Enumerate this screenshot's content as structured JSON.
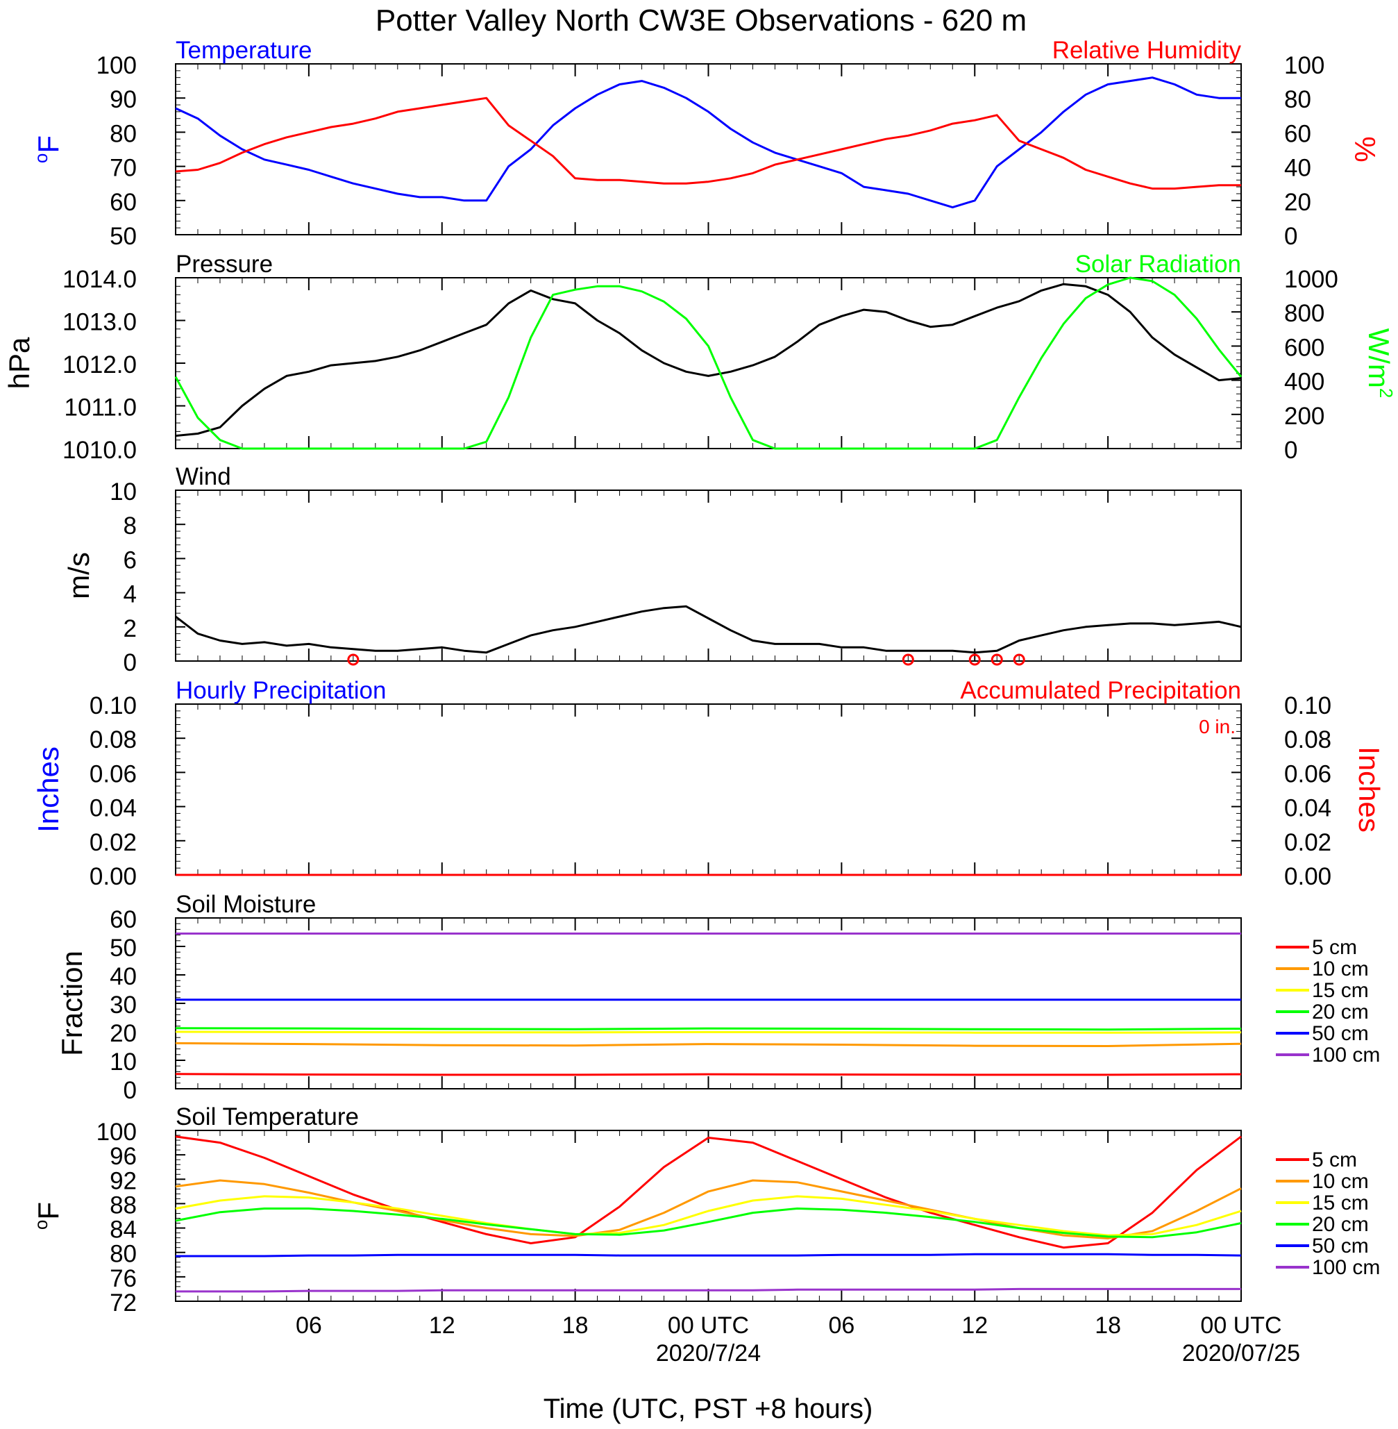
{
  "figure": {
    "title": "Potter Valley North CW3E Observations - 620 m",
    "xlabel": "Time (UTC, PST +8 hours)"
  },
  "colors": {
    "temperature": "#0000ff",
    "humidity": "#ff0000",
    "pressure": "#000000",
    "solar": "#00ff00",
    "wind": "#000000",
    "wind_barb": "#ff0000",
    "hourly_precip": "#0000ff",
    "accum_precip": "#ff0000",
    "soil_5": "#ff0000",
    "soil_10": "#ff9900",
    "soil_15": "#ffff00",
    "soil_20": "#00ff00",
    "soil_50": "#0000ff",
    "soil_100": "#9933cc"
  },
  "x_axis": {
    "tick_labels": [
      "06",
      "12",
      "18",
      "00 UTC",
      "06",
      "12",
      "18",
      "00 UTC"
    ],
    "date_labels": [
      "2020/7/24",
      "2020/07/25"
    ],
    "range_hours": [
      1,
      49
    ]
  },
  "chart_data": [
    {
      "type": "line",
      "panel": "temperature-humidity",
      "title_left": "Temperature",
      "title_right": "Relative Humidity",
      "ylabel_left": "oF",
      "ylabel_right": "%",
      "ylim_left": [
        50,
        100
      ],
      "ylim_right": [
        0,
        100
      ],
      "yticks_left": [
        "50",
        "60",
        "70",
        "80",
        "90",
        "100"
      ],
      "yticks_right": [
        "0",
        "20",
        "40",
        "60",
        "80",
        "100"
      ],
      "x_hours": [
        1,
        2,
        3,
        4,
        5,
        6,
        7,
        8,
        9,
        10,
        11,
        12,
        13,
        14,
        15,
        16,
        17,
        18,
        19,
        20,
        21,
        22,
        23,
        24,
        25,
        26,
        27,
        28,
        29,
        30,
        31,
        32,
        33,
        34,
        35,
        36,
        37,
        38,
        39,
        40,
        41,
        42,
        43,
        44,
        45,
        46,
        47,
        48,
        49
      ],
      "series": [
        {
          "name": "Temperature",
          "axis": "left",
          "color_key": "temperature",
          "values": [
            87,
            84,
            79,
            75,
            72,
            70.5,
            69,
            67,
            65,
            63.5,
            62,
            61,
            61,
            60,
            60,
            70,
            75,
            82,
            87,
            91,
            94,
            95,
            93,
            90,
            86,
            81,
            77,
            74,
            72,
            70,
            68,
            64,
            63,
            62,
            60,
            58,
            60,
            70,
            75,
            80,
            86,
            91,
            94,
            95,
            96,
            94,
            91,
            90,
            90
          ]
        },
        {
          "name": "Relative Humidity",
          "axis": "right",
          "color_key": "humidity",
          "values": [
            37,
            38,
            42,
            48,
            53,
            57,
            60,
            63,
            65,
            68,
            72,
            74,
            76,
            78,
            80,
            64,
            55,
            46,
            33,
            32,
            32,
            31,
            30,
            30,
            31,
            33,
            36,
            41,
            44,
            47,
            50,
            53,
            56,
            58,
            61,
            65,
            67,
            70,
            55,
            50,
            45,
            38,
            34,
            30,
            27,
            27,
            28,
            29,
            29
          ]
        }
      ]
    },
    {
      "type": "line",
      "panel": "pressure-solar",
      "title_left": "Pressure",
      "title_right": "Solar Radiation",
      "ylabel_left": "hPa",
      "ylabel_right": "W/m2",
      "ylim_left": [
        1010,
        1014
      ],
      "ylim_right": [
        0,
        1000
      ],
      "yticks_left": [
        "1010.0",
        "1011.0",
        "1012.0",
        "1013.0",
        "1014.0"
      ],
      "yticks_right": [
        "0",
        "200",
        "400",
        "600",
        "800",
        "1000"
      ],
      "x_hours": [
        1,
        2,
        3,
        4,
        5,
        6,
        7,
        8,
        9,
        10,
        11,
        12,
        13,
        14,
        15,
        16,
        17,
        18,
        19,
        20,
        21,
        22,
        23,
        24,
        25,
        26,
        27,
        28,
        29,
        30,
        31,
        32,
        33,
        34,
        35,
        36,
        37,
        38,
        39,
        40,
        41,
        42,
        43,
        44,
        45,
        46,
        47,
        48,
        49
      ],
      "series": [
        {
          "name": "Pressure",
          "axis": "left",
          "color_key": "pressure",
          "values": [
            1010.3,
            1010.35,
            1010.5,
            1011.0,
            1011.4,
            1011.7,
            1011.8,
            1011.95,
            1012.0,
            1012.05,
            1012.15,
            1012.3,
            1012.5,
            1012.7,
            1012.9,
            1013.4,
            1013.7,
            1013.5,
            1013.4,
            1013.0,
            1012.7,
            1012.3,
            1012.0,
            1011.8,
            1011.7,
            1011.8,
            1011.95,
            1012.15,
            1012.5,
            1012.9,
            1013.1,
            1013.25,
            1013.2,
            1013.0,
            1012.85,
            1012.9,
            1013.1,
            1013.3,
            1013.45,
            1013.7,
            1013.85,
            1013.8,
            1013.6,
            1013.2,
            1012.6,
            1012.2,
            1011.9,
            1011.6,
            1011.65
          ]
        },
        {
          "name": "Solar Radiation",
          "axis": "right",
          "color_key": "solar",
          "values": [
            420,
            180,
            50,
            0,
            0,
            0,
            0,
            0,
            0,
            0,
            0,
            0,
            0,
            0,
            40,
            300,
            650,
            900,
            930,
            950,
            950,
            920,
            860,
            760,
            600,
            300,
            50,
            0,
            0,
            0,
            0,
            0,
            0,
            0,
            0,
            0,
            0,
            50,
            300,
            530,
            730,
            880,
            960,
            1000,
            980,
            900,
            760,
            580,
            420
          ]
        }
      ]
    },
    {
      "type": "line",
      "panel": "wind",
      "title_left": "Wind",
      "ylabel_left": "m/s",
      "ylim_left": [
        0,
        10
      ],
      "yticks_left": [
        "0",
        "2",
        "4",
        "6",
        "8",
        "10"
      ],
      "x_hours": [
        1,
        2,
        3,
        4,
        5,
        6,
        7,
        8,
        9,
        10,
        11,
        12,
        13,
        14,
        15,
        16,
        17,
        18,
        19,
        20,
        21,
        22,
        23,
        24,
        25,
        26,
        27,
        28,
        29,
        30,
        31,
        32,
        33,
        34,
        35,
        36,
        37,
        38,
        39,
        40,
        41,
        42,
        43,
        44,
        45,
        46,
        47,
        48,
        49
      ],
      "series": [
        {
          "name": "Wind Speed",
          "axis": "left",
          "color_key": "wind",
          "values": [
            2.6,
            1.6,
            1.2,
            1.0,
            1.1,
            0.9,
            1.0,
            0.8,
            0.7,
            0.6,
            0.6,
            0.7,
            0.8,
            0.6,
            0.5,
            1.0,
            1.5,
            1.8,
            2.0,
            2.3,
            2.6,
            2.9,
            3.1,
            3.2,
            2.5,
            1.8,
            1.2,
            1.0,
            1.0,
            1.0,
            0.8,
            0.8,
            0.6,
            0.6,
            0.6,
            0.6,
            0.5,
            0.6,
            1.2,
            1.5,
            1.8,
            2.0,
            2.1,
            2.2,
            2.2,
            2.1,
            2.2,
            2.3,
            2.0
          ]
        }
      ],
      "calm_markers_hours": [
        9,
        34,
        37,
        38,
        39
      ]
    },
    {
      "type": "line",
      "panel": "precipitation",
      "title_left": "Hourly Precipitation",
      "title_right": "Accumulated Precipitation",
      "annotation": "0 in.",
      "ylabel_left": "Inches",
      "ylabel_right": "Inches",
      "ylim_left": [
        0,
        0.1
      ],
      "ylim_right": [
        0,
        0.1
      ],
      "yticks_left": [
        "0.00",
        "0.02",
        "0.04",
        "0.06",
        "0.08",
        "0.10"
      ],
      "yticks_right": [
        "0.00",
        "0.02",
        "0.04",
        "0.06",
        "0.08",
        "0.10"
      ],
      "x_hours": [
        1,
        49
      ],
      "series": [
        {
          "name": "Hourly Precipitation",
          "axis": "left",
          "color_key": "hourly_precip",
          "values": [
            0,
            0
          ]
        },
        {
          "name": "Accumulated Precipitation",
          "axis": "left",
          "color_key": "accum_precip",
          "values": [
            0,
            0
          ]
        }
      ]
    },
    {
      "type": "line",
      "panel": "soil-moisture",
      "title_left": "Soil Moisture",
      "ylabel_left": "Fraction",
      "ylim_left": [
        0,
        60
      ],
      "yticks_left": [
        "0",
        "10",
        "20",
        "30",
        "40",
        "50",
        "60"
      ],
      "x_hours": [
        1,
        7,
        13,
        19,
        25,
        31,
        37,
        43,
        49
      ],
      "series": [
        {
          "name": "5 cm",
          "color_key": "soil_5",
          "values": [
            5.2,
            5.0,
            4.9,
            4.9,
            5.1,
            5.0,
            4.9,
            4.9,
            5.1
          ]
        },
        {
          "name": "10 cm",
          "color_key": "soil_10",
          "values": [
            16.0,
            15.7,
            15.3,
            15.2,
            15.7,
            15.5,
            15.1,
            15.0,
            15.8
          ]
        },
        {
          "name": "15 cm",
          "color_key": "soil_15",
          "values": [
            20.0,
            19.9,
            19.8,
            19.8,
            19.9,
            19.8,
            19.7,
            19.7,
            19.8
          ]
        },
        {
          "name": "20 cm",
          "color_key": "soil_20",
          "values": [
            21.3,
            21.2,
            21.0,
            20.9,
            21.2,
            21.1,
            20.9,
            20.8,
            21.1
          ]
        },
        {
          "name": "50 cm",
          "color_key": "soil_50",
          "values": [
            31.3,
            31.3,
            31.3,
            31.3,
            31.3,
            31.3,
            31.3,
            31.3,
            31.3
          ]
        },
        {
          "name": "100 cm",
          "color_key": "soil_100",
          "values": [
            54.5,
            54.5,
            54.5,
            54.5,
            54.5,
            54.5,
            54.5,
            54.5,
            54.5
          ]
        }
      ]
    },
    {
      "type": "line",
      "panel": "soil-temperature",
      "title_left": "Soil Temperature",
      "ylabel_left": "oF",
      "ylim_left": [
        72,
        100
      ],
      "yticks_left": [
        "72",
        "76",
        "80",
        "84",
        "88",
        "92",
        "96",
        "100"
      ],
      "x_hours": [
        1,
        3,
        5,
        7,
        9,
        11,
        13,
        15,
        17,
        19,
        21,
        23,
        25,
        27,
        29,
        31,
        33,
        35,
        37,
        39,
        41,
        43,
        45,
        47,
        49
      ],
      "series": [
        {
          "name": "5 cm",
          "color_key": "soil_5",
          "values": [
            99.0,
            98.0,
            95.5,
            92.5,
            89.5,
            87.0,
            85.0,
            83.0,
            81.5,
            82.5,
            87.5,
            94.0,
            98.8,
            98.0,
            95.0,
            92.0,
            89.0,
            86.5,
            84.5,
            82.5,
            80.8,
            81.5,
            86.5,
            93.5,
            99.0
          ]
        },
        {
          "name": "10 cm",
          "color_key": "soil_10",
          "values": [
            90.8,
            91.8,
            91.2,
            89.8,
            88.2,
            86.8,
            85.3,
            84.0,
            83.0,
            82.7,
            83.7,
            86.5,
            90.0,
            91.8,
            91.5,
            90.0,
            88.5,
            87.0,
            85.5,
            84.0,
            82.8,
            82.3,
            83.5,
            86.8,
            90.5
          ]
        },
        {
          "name": "15 cm",
          "color_key": "soil_15",
          "values": [
            87.2,
            88.5,
            89.2,
            89.0,
            88.2,
            87.2,
            86.0,
            84.8,
            83.8,
            83.0,
            83.2,
            84.5,
            86.8,
            88.5,
            89.2,
            88.8,
            87.8,
            86.8,
            85.5,
            84.5,
            83.5,
            82.8,
            83.0,
            84.5,
            86.8
          ]
        },
        {
          "name": "20 cm",
          "color_key": "soil_20",
          "values": [
            85.2,
            86.6,
            87.2,
            87.2,
            86.8,
            86.2,
            85.5,
            84.6,
            83.8,
            83.0,
            82.9,
            83.6,
            85.0,
            86.5,
            87.2,
            87.0,
            86.5,
            85.8,
            85.0,
            84.0,
            83.2,
            82.6,
            82.5,
            83.3,
            84.8
          ]
        },
        {
          "name": "50 cm",
          "color_key": "soil_50",
          "values": [
            79.4,
            79.4,
            79.4,
            79.5,
            79.5,
            79.6,
            79.6,
            79.6,
            79.6,
            79.6,
            79.5,
            79.5,
            79.5,
            79.5,
            79.5,
            79.6,
            79.6,
            79.6,
            79.7,
            79.7,
            79.7,
            79.7,
            79.6,
            79.6,
            79.5
          ]
        },
        {
          "name": "100 cm",
          "color_key": "soil_100",
          "values": [
            73.6,
            73.6,
            73.6,
            73.7,
            73.7,
            73.7,
            73.8,
            73.8,
            73.8,
            73.8,
            73.8,
            73.8,
            73.8,
            73.8,
            73.9,
            73.9,
            73.9,
            73.9,
            73.9,
            74.0,
            74.0,
            74.0,
            74.0,
            74.0,
            74.0
          ]
        }
      ]
    }
  ]
}
